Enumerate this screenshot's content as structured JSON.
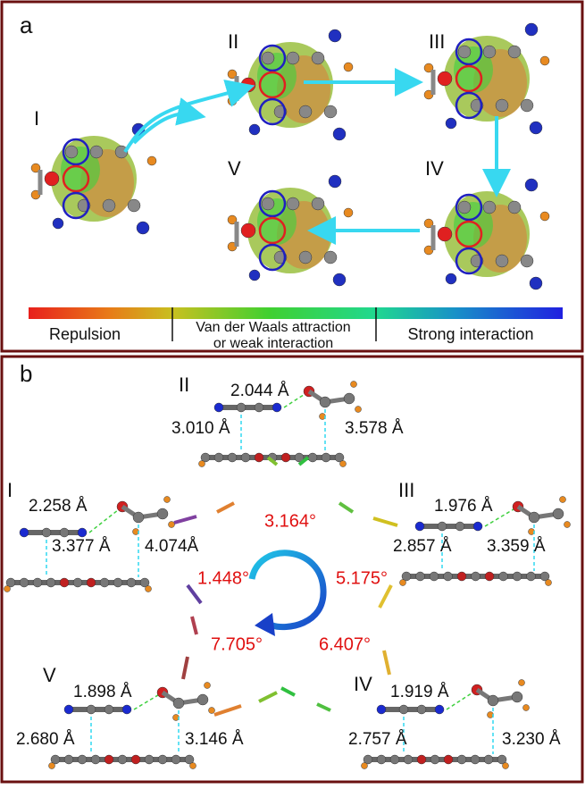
{
  "panel_a": {
    "label": "a",
    "states": [
      "I",
      "II",
      "III",
      "IV",
      "V"
    ],
    "colorbar": {
      "labels": [
        "Repulsion",
        "Van der Waals attraction",
        "or weak interaction",
        "Strong interaction"
      ]
    }
  },
  "panel_b": {
    "label": "b",
    "structures": [
      {
        "label": "II",
        "hbond": "2.044 Å",
        "distances": [
          "3.010 Å",
          "3.578 Å"
        ]
      },
      {
        "label": "I",
        "hbond": "2.258 Å",
        "distances": [
          "3.377 Å",
          "4.074Å"
        ]
      },
      {
        "label": "III",
        "hbond": "1.976 Å",
        "distances": [
          "2.857 Å",
          "3.359 Å"
        ]
      },
      {
        "label": "V",
        "hbond": "1.898 Å",
        "distances": [
          "2.680 Å",
          "3.146 Å"
        ]
      },
      {
        "label": "IV",
        "hbond": "1.919 Å",
        "distances": [
          "2.757 Å",
          "3.230 Å"
        ]
      }
    ],
    "angles": [
      "3.164°",
      "1.448°",
      "5.175°",
      "7.705°",
      "6.407°"
    ]
  }
}
